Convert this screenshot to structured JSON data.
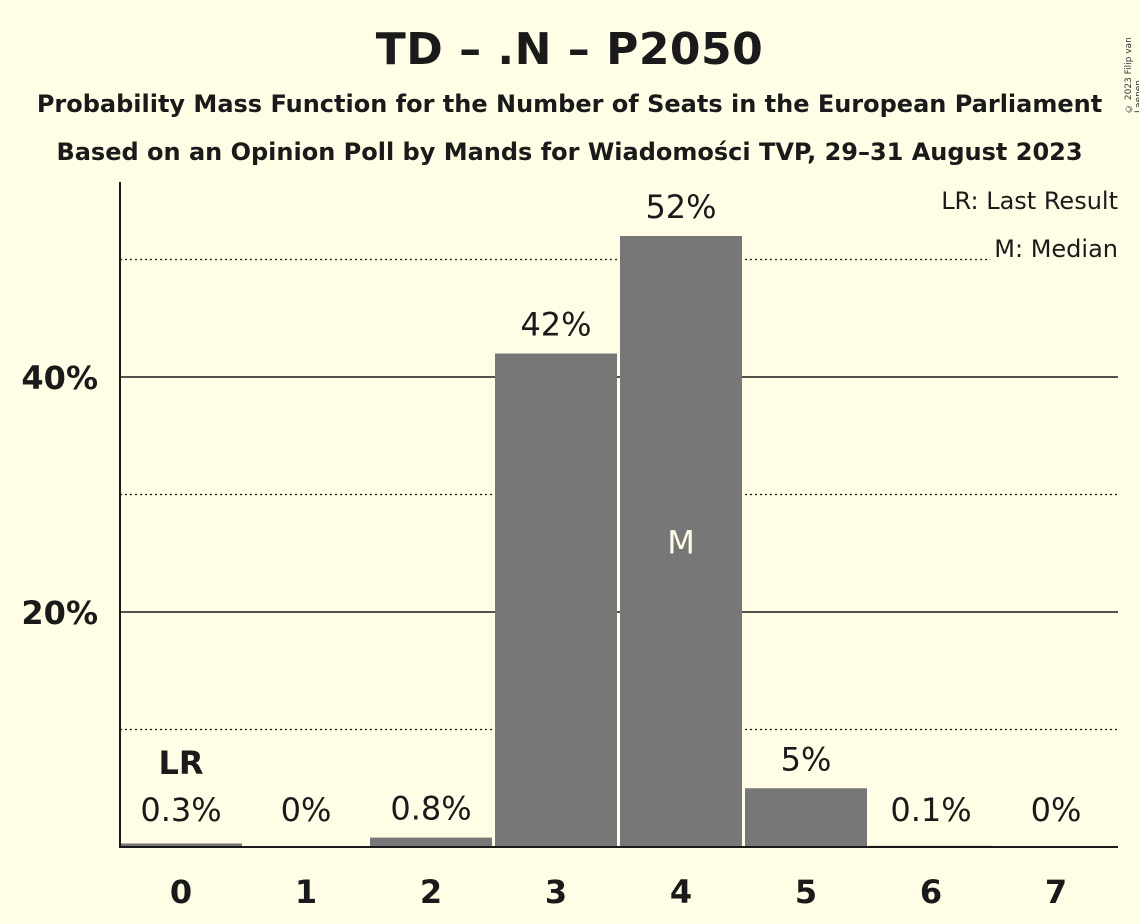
{
  "title": "TD – .N – P2050",
  "subtitle_1": "Probability Mass Function for the Number of Seats in the European Parliament",
  "subtitle_2": "Based on an Opinion Poll by Mands for Wiadomości TVP, 29–31 August 2023",
  "copyright": "© 2023 Filip van Laenen",
  "legend": {
    "last_result": "LR: Last Result",
    "median": "M: Median"
  },
  "colors": {
    "background": "#FFFDE6",
    "bar": "#777777",
    "text": "#1a1a1a"
  },
  "chart_data": {
    "type": "bar",
    "categories": [
      "0",
      "1",
      "2",
      "3",
      "4",
      "5",
      "6",
      "7"
    ],
    "values": [
      0.3,
      0,
      0.8,
      42,
      52,
      5,
      0.1,
      0
    ],
    "labels": [
      "0.3%",
      "0%",
      "0.8%",
      "42%",
      "52%",
      "5%",
      "0.1%",
      "0%"
    ],
    "yticks": [
      20,
      40
    ],
    "ytick_labels": [
      "20%",
      "40%"
    ],
    "minor_gridlines": [
      10,
      30,
      50
    ],
    "ylim": [
      0,
      56
    ],
    "last_result_index": 0,
    "last_result_label": "LR",
    "median_index": 4,
    "median_label": "M",
    "legend_position": "top-right"
  }
}
